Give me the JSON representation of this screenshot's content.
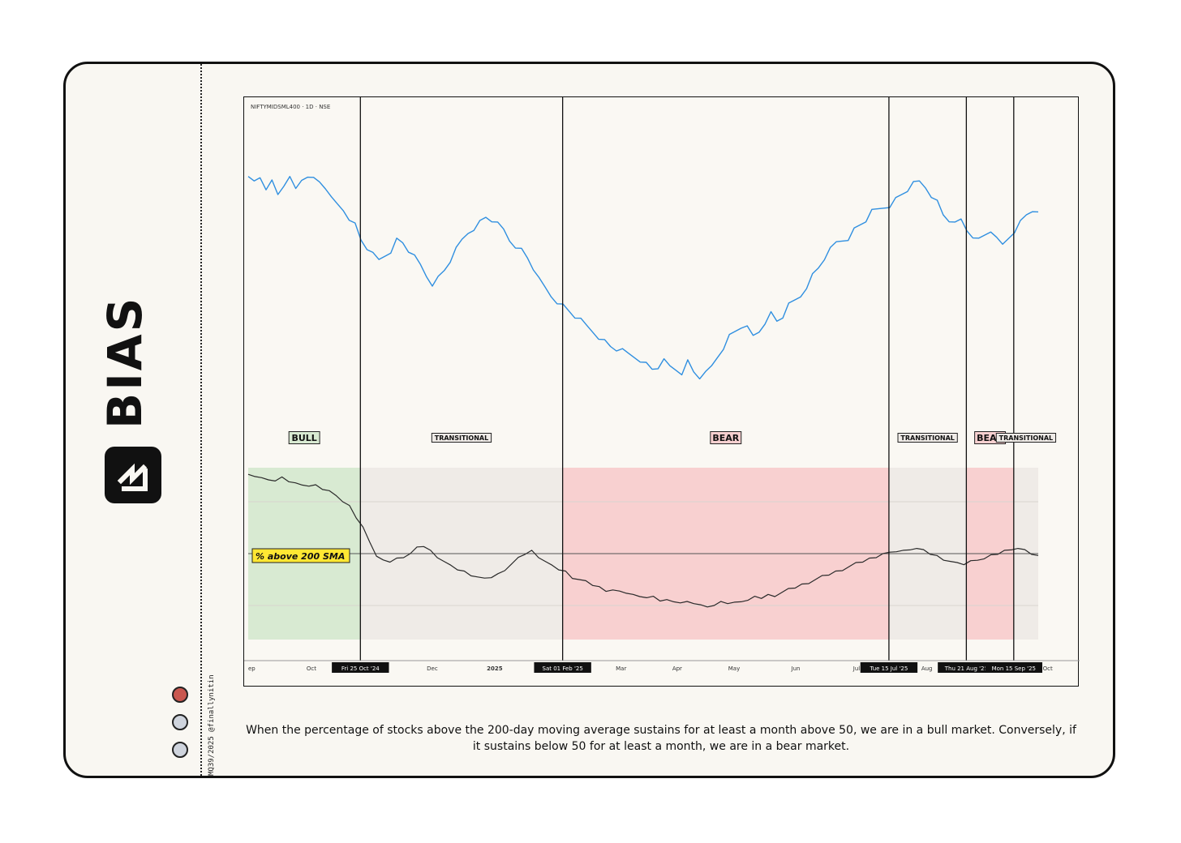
{
  "brand": {
    "name": "BIAS",
    "credit": "MQ39/2025 @finallynitin",
    "dot_colors": [
      "#c9574f",
      "#cfd4dd",
      "#cfd4dd"
    ]
  },
  "caption": "When the percentage of stocks above the 200-day moving average sustains for at least a month above 50, we are in a bull market. Conversely, if it sustains below 50 for at least a month, we are in a bear market.",
  "chart_data": {
    "type": "line",
    "symbol_label": "NIFTYMIDSML400 · 1D · NSE",
    "price_series": {
      "color": "#2f8fe0",
      "values": [
        86,
        85,
        87,
        83,
        85,
        80,
        84,
        86,
        82,
        86,
        88,
        86,
        85,
        83,
        78,
        76,
        74,
        71,
        68,
        62,
        59,
        56,
        54,
        56,
        58,
        62,
        61,
        58,
        55,
        52,
        48,
        45,
        47,
        50,
        54,
        58,
        62,
        65,
        67,
        69,
        71,
        70,
        68,
        66,
        62,
        60,
        58,
        55,
        51,
        46,
        43,
        40,
        38,
        36,
        34,
        32,
        30,
        28,
        26,
        24,
        22,
        20,
        19,
        18,
        17,
        16,
        15,
        13,
        11,
        12,
        14,
        12,
        11,
        10,
        14,
        10,
        8,
        9,
        12,
        16,
        20,
        24,
        26,
        28,
        27,
        24,
        26,
        30,
        33,
        30,
        32,
        36,
        38,
        40,
        44,
        48,
        51,
        55,
        58,
        61,
        62,
        63,
        66,
        68,
        70,
        73,
        74,
        75,
        76,
        78,
        80,
        82,
        84,
        85,
        83,
        80,
        77,
        72,
        70,
        68,
        70,
        66,
        64,
        62,
        64,
        66,
        62,
        60,
        63,
        66,
        69,
        72,
        74,
        72
      ]
    },
    "breadth_series": {
      "name": "% above 200 SMA",
      "color": "#2a2a2a",
      "values": [
        80,
        80,
        79,
        79,
        78,
        79,
        78,
        77,
        77,
        76,
        76,
        75,
        74,
        73,
        70,
        68,
        64,
        60,
        55,
        49,
        47,
        47,
        48,
        49,
        50,
        52,
        53,
        51,
        49,
        47,
        45,
        44,
        43,
        42,
        41,
        40,
        41,
        42,
        44,
        46,
        48,
        50,
        51,
        49,
        47,
        45,
        44,
        43,
        41,
        40,
        39,
        38,
        37,
        36,
        36,
        35,
        35,
        34,
        34,
        33,
        33,
        32,
        32,
        32,
        31,
        31,
        31,
        30,
        30,
        30,
        31,
        31,
        31,
        32,
        32,
        33,
        33,
        34,
        34,
        35,
        36,
        37,
        38,
        39,
        40,
        41,
        42,
        43,
        44,
        45,
        46,
        47,
        48,
        49,
        50,
        50,
        51,
        51,
        52,
        52,
        51,
        50,
        49,
        48,
        47,
        46,
        46,
        47,
        48,
        48,
        49,
        50,
        51,
        52,
        52,
        51,
        50,
        49
      ]
    },
    "regimes": [
      {
        "label": "BULL",
        "type": "bull",
        "from": 0.0,
        "to": 0.142
      },
      {
        "label": "TRANSITIONAL",
        "type": "transitional",
        "from": 0.142,
        "to": 0.398
      },
      {
        "label": "BEAR",
        "type": "bear",
        "from": 0.398,
        "to": 0.811
      },
      {
        "label": "TRANSITIONAL",
        "type": "transitional",
        "from": 0.811,
        "to": 0.909
      },
      {
        "label": "BEAR",
        "type": "bear",
        "from": 0.909,
        "to": 0.969
      },
      {
        "label": "TRANSITIONAL",
        "type": "transitional",
        "from": 0.969,
        "to": 1.0
      }
    ],
    "regime_colors": {
      "bull": "#d8ead2",
      "transitional": "#efebe7",
      "bear": "#f8d0d0"
    },
    "markers": [
      {
        "label": "Fri 25 Oct '24",
        "at": 0.142
      },
      {
        "label": "Sat 01 Feb '25",
        "at": 0.398
      },
      {
        "label": "Tue 15 Jul '25",
        "at": 0.811
      },
      {
        "label": "Thu 21 Aug '25",
        "at": 0.909
      },
      {
        "label": "Mon 15 Sep '25",
        "at": 0.969
      }
    ],
    "x_ticks": [
      {
        "label": "ep",
        "at": 0.0,
        "bold": false
      },
      {
        "label": "Oct",
        "at": 0.08,
        "bold": false
      },
      {
        "label": "Dec",
        "at": 0.233,
        "bold": false
      },
      {
        "label": "2025",
        "at": 0.312,
        "bold": true
      },
      {
        "label": "Mar",
        "at": 0.472,
        "bold": false
      },
      {
        "label": "Apr",
        "at": 0.543,
        "bold": false
      },
      {
        "label": "May",
        "at": 0.615,
        "bold": false
      },
      {
        "label": "Jun",
        "at": 0.693,
        "bold": false
      },
      {
        "label": "Jul",
        "at": 0.77,
        "bold": false
      },
      {
        "label": "Aug",
        "at": 0.859,
        "bold": false
      },
      {
        "label": "Oct",
        "at": 1.012,
        "bold": false
      }
    ],
    "fifty_level": 50,
    "grid_levels": [
      30,
      70
    ]
  }
}
